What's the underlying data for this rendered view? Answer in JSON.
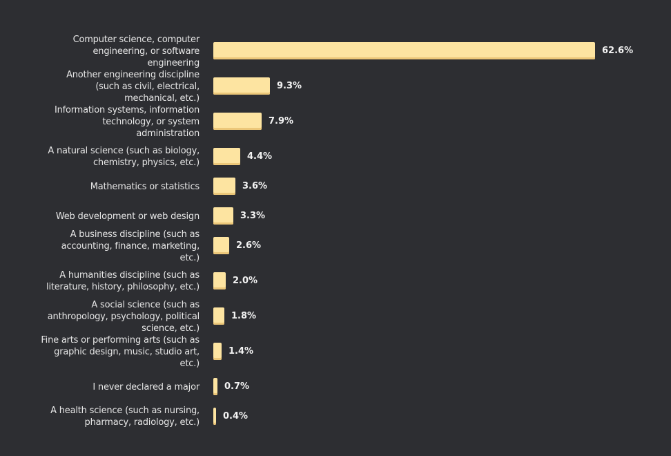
{
  "chart_data": {
    "type": "bar",
    "orientation": "horizontal",
    "title": "",
    "xlabel": "",
    "ylabel": "",
    "xlim": [
      0,
      62.6
    ],
    "grid": false,
    "legend": "none",
    "colors": {
      "background": "#2d2e32",
      "bar": "#fde4a1",
      "bar_shade": "#ecc779",
      "label_text": "#e6e6e6",
      "value_text": "#f2f2f2"
    },
    "categories": [
      "Computer science, computer engineering, or software engineering",
      "Another engineering discipline (such as civil, electrical, mechanical, etc.)",
      "Information systems, information technology, or system administration",
      "A natural science (such as biology, chemistry, physics, etc.)",
      "Mathematics or statistics",
      "Web development or web design",
      "A business discipline (such as accounting, finance, marketing, etc.)",
      "A humanities discipline (such as literature, history, philosophy, etc.)",
      "A social science (such as anthropology, psychology, political science, etc.)",
      "Fine arts or performing arts (such as graphic design, music, studio art, etc.)",
      "I never declared a major",
      "A health science (such as nursing, pharmacy, radiology, etc.)"
    ],
    "values": [
      62.6,
      9.3,
      7.9,
      4.4,
      3.6,
      3.3,
      2.6,
      2.0,
      1.8,
      1.4,
      0.7,
      0.4
    ],
    "value_labels": [
      "62.6%",
      "9.3%",
      "7.9%",
      "4.4%",
      "3.6%",
      "3.3%",
      "2.6%",
      "2.0%",
      "1.8%",
      "1.4%",
      "0.7%",
      "0.4%"
    ],
    "unit": "%"
  }
}
